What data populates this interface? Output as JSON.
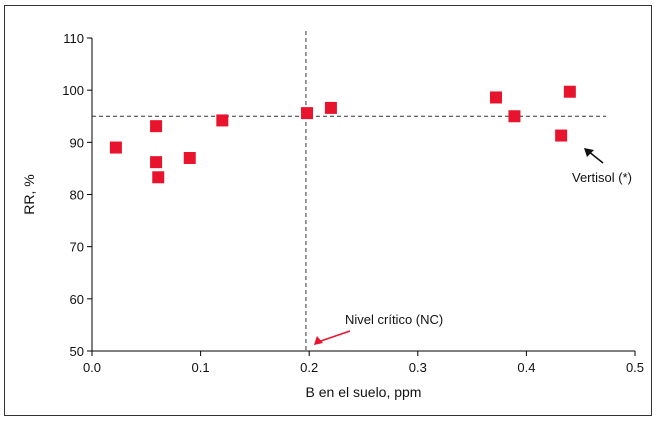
{
  "chart_data": {
    "type": "scatter",
    "xlabel": "B en el suelo, ppm",
    "ylabel": "RR, %",
    "xlim": [
      0.0,
      0.5
    ],
    "ylim": [
      50,
      110
    ],
    "xticks": [
      "0.0",
      "0.1",
      "0.2",
      "0.3",
      "0.4",
      "0.5"
    ],
    "yticks": [
      "50",
      "60",
      "70",
      "80",
      "90",
      "100",
      "110"
    ],
    "grid": false,
    "marker_color": "#e8142e",
    "series": [
      {
        "points": [
          {
            "x": 0.022,
            "y": 89.0
          },
          {
            "x": 0.059,
            "y": 93.1
          },
          {
            "x": 0.059,
            "y": 86.2
          },
          {
            "x": 0.061,
            "y": 83.3
          },
          {
            "x": 0.09,
            "y": 87.0
          },
          {
            "x": 0.12,
            "y": 94.2
          },
          {
            "x": 0.198,
            "y": 95.6
          },
          {
            "x": 0.22,
            "y": 96.6
          },
          {
            "x": 0.372,
            "y": 98.6
          },
          {
            "x": 0.389,
            "y": 95.0
          },
          {
            "x": 0.432,
            "y": 91.3
          },
          {
            "x": 0.44,
            "y": 99.7
          }
        ]
      }
    ],
    "reference_lines": {
      "vertical_x": 0.197,
      "horizontal_y": 95.0
    },
    "annotations": [
      {
        "text": "Nivel crítico (NC)",
        "color": "#e8142e",
        "points_to": {
          "x": 0.197,
          "y": 50
        }
      },
      {
        "text": "Vertisol (*)",
        "color": "#111111",
        "points_to": {
          "x": 0.44,
          "y": 90
        }
      }
    ]
  }
}
